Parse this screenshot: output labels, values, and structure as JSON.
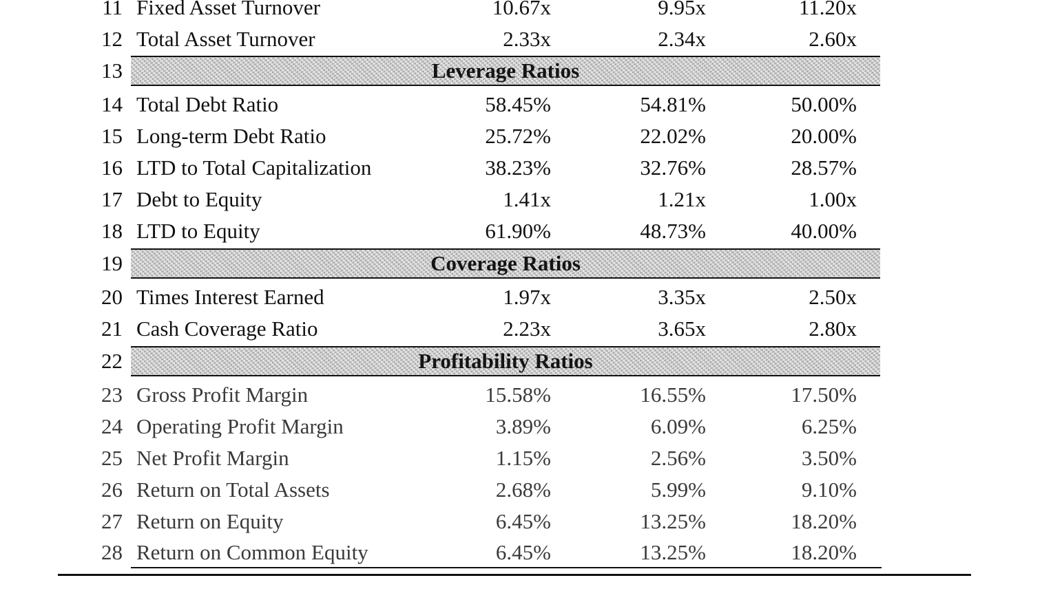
{
  "rows": [
    {
      "num": "11",
      "label": "Fixed Asset Turnover",
      "v1": "10.67x",
      "v2": "9.95x",
      "v3": "11.20x"
    },
    {
      "num": "12",
      "label": "Total Asset Turnover",
      "v1": "2.33x",
      "v2": "2.34x",
      "v3": "2.60x"
    },
    {
      "num": "13",
      "section": "Leverage Ratios"
    },
    {
      "num": "14",
      "label": "Total Debt Ratio",
      "v1": "58.45%",
      "v2": "54.81%",
      "v3": "50.00%"
    },
    {
      "num": "15",
      "label": "Long-term Debt Ratio",
      "v1": "25.72%",
      "v2": "22.02%",
      "v3": "20.00%"
    },
    {
      "num": "16",
      "label": "LTD to Total Capitalization",
      "v1": "38.23%",
      "v2": "32.76%",
      "v3": "28.57%"
    },
    {
      "num": "17",
      "label": "Debt to Equity",
      "v1": "1.41x",
      "v2": "1.21x",
      "v3": "1.00x"
    },
    {
      "num": "18",
      "label": "LTD to Equity",
      "v1": "61.90%",
      "v2": "48.73%",
      "v3": "40.00%"
    },
    {
      "num": "19",
      "section": "Coverage Ratios"
    },
    {
      "num": "20",
      "label": "Times Interest Earned",
      "v1": "1.97x",
      "v2": "3.35x",
      "v3": "2.50x"
    },
    {
      "num": "21",
      "label": "Cash Coverage Ratio",
      "v1": "2.23x",
      "v2": "3.65x",
      "v3": "2.80x"
    },
    {
      "num": "22",
      "section": "Profitability Ratios"
    },
    {
      "num": "23",
      "label": "Gross Profit Margin",
      "v1": "15.58%",
      "v2": "16.55%",
      "v3": "17.50%"
    },
    {
      "num": "24",
      "label": "Operating Profit Margin",
      "v1": "3.89%",
      "v2": "6.09%",
      "v3": "6.25%"
    },
    {
      "num": "25",
      "label": "Net Profit Margin",
      "v1": "1.15%",
      "v2": "2.56%",
      "v3": "3.50%"
    },
    {
      "num": "26",
      "label": "Return on Total Assets",
      "v1": "2.68%",
      "v2": "5.99%",
      "v3": "9.10%"
    },
    {
      "num": "27",
      "label": "Return on Equity",
      "v1": "6.45%",
      "v2": "13.25%",
      "v3": "18.20%"
    },
    {
      "num": "28",
      "label": "Return on Common Equity",
      "v1": "6.45%",
      "v2": "13.25%",
      "v3": "18.20%"
    }
  ]
}
